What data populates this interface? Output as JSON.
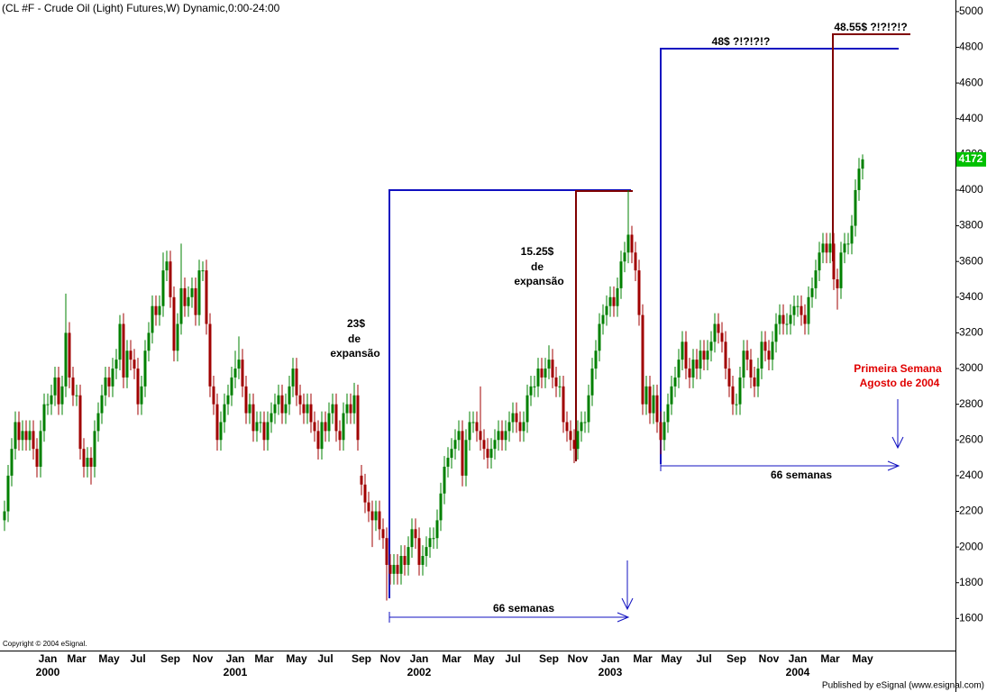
{
  "chart_data": {
    "type": "candlestick",
    "title": "(CL #F - Crude Oil (Light) Futures,W) Dynamic,0:00-24:00",
    "copyright": "Copyright © 2004 eSignal.",
    "publisher": "Published by eSignal (www.esignal.com)",
    "up_color": "#008000",
    "down_color": "#a00000",
    "last_color": "#00c000",
    "ylim": [
      1420,
      5065
    ],
    "yticks": [
      1600,
      1800,
      2000,
      2200,
      2400,
      2600,
      2800,
      3000,
      3200,
      3400,
      3600,
      3800,
      4000,
      4200,
      4400,
      4600,
      4800,
      5000
    ],
    "categories": [
      null,
      null,
      null,
      null,
      null,
      null,
      null,
      null,
      null,
      null,
      null,
      null,
      "Jan",
      null,
      null,
      null,
      null,
      null,
      null,
      null,
      "Mar",
      null,
      null,
      null,
      null,
      null,
      null,
      null,
      null,
      "May",
      null,
      null,
      null,
      null,
      null,
      null,
      null,
      "Jul",
      null,
      null,
      null,
      null,
      null,
      null,
      null,
      null,
      "Sep",
      null,
      null,
      null,
      null,
      null,
      null,
      null,
      null,
      "Nov",
      null,
      null,
      null,
      null,
      null,
      null,
      null,
      null,
      "Jan",
      null,
      null,
      null,
      null,
      null,
      null,
      null,
      "Mar",
      null,
      null,
      null,
      null,
      null,
      null,
      null,
      null,
      "May",
      null,
      null,
      null,
      null,
      null,
      null,
      null,
      "Jul",
      null,
      null,
      null,
      null,
      null,
      null,
      null,
      null,
      null,
      "Sep",
      null,
      null,
      null,
      null,
      null,
      null,
      null,
      "Nov",
      null,
      null,
      null,
      null,
      null,
      null,
      null,
      "Jan",
      null,
      null,
      null,
      null,
      null,
      null,
      null,
      null,
      "Mar",
      null,
      null,
      null,
      null,
      null,
      null,
      null,
      null,
      "May",
      null,
      null,
      null,
      null,
      null,
      null,
      null,
      "Jul",
      null,
      null,
      null,
      null,
      null,
      null,
      null,
      null,
      null,
      "Sep",
      null,
      null,
      null,
      null,
      null,
      null,
      null,
      "Nov",
      null,
      null,
      null,
      null,
      null,
      null,
      null,
      null,
      "Jan",
      null,
      null,
      null,
      null,
      null,
      null,
      null,
      null,
      "Mar",
      null,
      null,
      null,
      null,
      null,
      null,
      null,
      "May",
      null,
      null,
      null,
      null,
      null,
      null,
      null,
      null,
      "Jul",
      null,
      null,
      null,
      null,
      null,
      null,
      null,
      null,
      "Sep",
      null,
      null,
      null,
      null,
      null,
      null,
      null,
      null,
      "Nov",
      null,
      null,
      null,
      null,
      null,
      null,
      null,
      "Jan",
      null,
      null,
      null,
      null,
      null,
      null,
      null,
      null,
      "Mar",
      null,
      null,
      null,
      null,
      null,
      null,
      null,
      null,
      "May"
    ],
    "years": [
      null,
      null,
      null,
      null,
      null,
      null,
      null,
      null,
      null,
      null,
      null,
      null,
      "2000",
      null,
      null,
      null,
      null,
      null,
      null,
      null,
      null,
      null,
      null,
      null,
      null,
      null,
      null,
      null,
      null,
      null,
      null,
      null,
      null,
      null,
      null,
      null,
      null,
      null,
      null,
      null,
      null,
      null,
      null,
      null,
      null,
      null,
      null,
      null,
      null,
      null,
      null,
      null,
      null,
      null,
      null,
      null,
      null,
      null,
      null,
      null,
      null,
      null,
      null,
      null,
      "2001",
      null,
      null,
      null,
      null,
      null,
      null,
      null,
      null,
      null,
      null,
      null,
      null,
      null,
      null,
      null,
      null,
      null,
      null,
      null,
      null,
      null,
      null,
      null,
      null,
      null,
      null,
      null,
      null,
      null,
      null,
      null,
      null,
      null,
      null,
      null,
      null,
      null,
      null,
      null,
      null,
      null,
      null,
      null,
      null,
      null,
      null,
      null,
      null,
      null,
      null,
      "2002",
      null,
      null,
      null,
      null,
      null,
      null,
      null,
      null,
      null,
      null,
      null,
      null,
      null,
      null,
      null,
      null,
      null,
      null,
      null,
      null,
      null,
      null,
      null,
      null,
      null,
      null,
      null,
      null,
      null,
      null,
      null,
      null,
      null,
      null,
      null,
      null,
      null,
      null,
      null,
      null,
      null,
      null,
      null,
      null,
      null,
      null,
      null,
      null,
      null,
      null,
      null,
      null,
      "2003",
      null,
      null,
      null,
      null,
      null,
      null,
      null,
      null,
      null,
      null,
      null,
      null,
      null,
      null,
      null,
      null,
      null,
      null,
      null,
      null,
      null,
      null,
      null,
      null,
      null,
      null,
      null,
      null,
      null,
      null,
      null,
      null,
      null,
      null,
      null,
      null,
      null,
      null,
      null,
      null,
      null,
      null,
      null,
      null,
      null,
      null,
      null,
      null,
      null,
      null,
      null,
      "2004",
      null,
      null,
      null,
      null,
      null,
      null,
      null,
      null,
      null,
      null,
      null,
      null,
      null,
      null,
      null,
      null,
      null,
      null
    ],
    "open": [
      2150,
      2200,
      2400,
      2550,
      2700,
      2600,
      2650,
      2600,
      2650,
      2550,
      2450,
      2650,
      2800,
      2800,
      2850,
      2950,
      2800,
      2900,
      3200,
      2950,
      2850,
      2850,
      2550,
      2450,
      2500,
      2450,
      2650,
      2750,
      2850,
      2950,
      2900,
      3000,
      3050,
      3250,
      2950,
      3100,
      3050,
      3000,
      2800,
      2900,
      3100,
      3200,
      3350,
      3300,
      3350,
      3550,
      3600,
      3400,
      3100,
      3250,
      3450,
      3350,
      3400,
      3450,
      3300,
      3550,
      3550,
      3250,
      2900,
      2800,
      2600,
      2700,
      2800,
      2850,
      2950,
      3000,
      3050,
      2900,
      2750,
      2800,
      2650,
      2700,
      2700,
      2600,
      2700,
      2750,
      2800,
      2850,
      2750,
      2800,
      2900,
      3000,
      2850,
      2800,
      2750,
      2800,
      2700,
      2650,
      2550,
      2700,
      2650,
      2750,
      2800,
      2650,
      2600,
      2750,
      2800,
      2750,
      2850,
      2400,
      2350,
      2250,
      2200,
      2150,
      2200,
      2100,
      2050,
      1900,
      1850,
      1900,
      1850,
      1950,
      1900,
      2000,
      2100,
      2050,
      1900,
      1950,
      2000,
      2050,
      2050,
      2150,
      2300,
      2450,
      2500,
      2550,
      2600,
      2650,
      2400,
      2600,
      2700,
      2700,
      2650,
      2600,
      2550,
      2500,
      2550,
      2600,
      2650,
      2600,
      2650,
      2700,
      2750,
      2700,
      2650,
      2700,
      2850,
      2900,
      2900,
      3000,
      2950,
      3000,
      3050,
      2950,
      2900,
      2900,
      2700,
      2650,
      2600,
      2550,
      2650,
      2700,
      2700,
      2850,
      3000,
      3100,
      3250,
      3300,
      3350,
      3400,
      3350,
      3450,
      3600,
      3650,
      3750,
      3650,
      3550,
      3300,
      2800,
      2900,
      2750,
      2850,
      2700,
      2600,
      2700,
      2800,
      2900,
      2950,
      3050,
      3150,
      3000,
      2950,
      3050,
      3000,
      3100,
      3050,
      3100,
      3150,
      3250,
      3200,
      3150,
      3000,
      2900,
      2800,
      2800,
      2950,
      3100,
      3050,
      2950,
      2900,
      3000,
      3150,
      3100,
      3050,
      3150,
      3250,
      3300,
      3250,
      3250,
      3300,
      3350,
      3350,
      3300,
      3250,
      3400,
      3450,
      3550,
      3650,
      3700,
      3650,
      3700,
      3500,
      3450,
      3650,
      3700,
      3700,
      3800,
      4000,
      4120
    ],
    "high": [
      2260,
      2460,
      2610,
      2760,
      2760,
      2710,
      2710,
      2710,
      2710,
      2610,
      2710,
      2860,
      2860,
      2910,
      3010,
      3010,
      2960,
      3420,
      3260,
      3010,
      2910,
      2910,
      2610,
      2560,
      2560,
      2710,
      2810,
      2910,
      3010,
      3010,
      3060,
      3110,
      3300,
      3310,
      3160,
      3160,
      3110,
      3060,
      2960,
      3160,
      3260,
      3410,
      3410,
      3410,
      3650,
      3660,
      3660,
      3460,
      3310,
      3700,
      3510,
      3460,
      3510,
      3510,
      3610,
      3600,
      3610,
      3310,
      2960,
      2860,
      2760,
      2860,
      2910,
      3010,
      3100,
      3180,
      3110,
      2960,
      2860,
      2860,
      2760,
      2760,
      2760,
      2760,
      2810,
      2860,
      2910,
      2910,
      2860,
      2960,
      3060,
      3060,
      2910,
      2860,
      2860,
      2860,
      2760,
      2710,
      2760,
      2760,
      2810,
      2860,
      2860,
      2710,
      2810,
      2860,
      2860,
      2920,
      2910,
      2460,
      2410,
      2310,
      2260,
      2260,
      2260,
      2160,
      2110,
      1960,
      1960,
      1960,
      2010,
      2010,
      2060,
      2160,
      2160,
      2110,
      2010,
      2060,
      2110,
      2110,
      2210,
      2360,
      2510,
      2560,
      2610,
      2660,
      2710,
      2710,
      2660,
      2760,
      2760,
      2760,
      2900,
      2660,
      2610,
      2610,
      2660,
      2710,
      2710,
      2710,
      2760,
      2810,
      2810,
      2760,
      2760,
      2910,
      2960,
      2960,
      3060,
      3060,
      3060,
      3130,
      3110,
      3010,
      2960,
      2960,
      2760,
      2710,
      2660,
      2710,
      2760,
      2760,
      2910,
      3060,
      3160,
      3310,
      3360,
      3410,
      3460,
      3460,
      3510,
      3660,
      3710,
      4000,
      3800,
      3710,
      3610,
      3360,
      2960,
      2960,
      2910,
      2910,
      2760,
      2760,
      2860,
      2960,
      3010,
      3110,
      3210,
      3210,
      3060,
      3110,
      3110,
      3160,
      3160,
      3160,
      3210,
      3310,
      3310,
      3260,
      3210,
      3060,
      2960,
      2860,
      3010,
      3160,
      3160,
      3110,
      3010,
      3060,
      3210,
      3210,
      3160,
      3210,
      3310,
      3360,
      3360,
      3310,
      3360,
      3410,
      3410,
      3410,
      3360,
      3460,
      3510,
      3610,
      3710,
      3760,
      3760,
      3760,
      3760,
      3560,
      3710,
      3760,
      3760,
      3860,
      4060,
      4180,
      4200
    ],
    "low": [
      2090,
      2140,
      2340,
      2490,
      2540,
      2540,
      2540,
      2540,
      2490,
      2390,
      2390,
      2590,
      2740,
      2740,
      2790,
      2740,
      2740,
      2840,
      2890,
      2790,
      2790,
      2490,
      2390,
      2390,
      2350,
      2390,
      2590,
      2690,
      2790,
      2840,
      2840,
      2940,
      2990,
      2890,
      2890,
      2990,
      2940,
      2740,
      2740,
      2840,
      3040,
      3140,
      3240,
      3240,
      3290,
      3490,
      3340,
      3040,
      3040,
      3190,
      3290,
      3290,
      3340,
      3240,
      3240,
      3490,
      3190,
      2840,
      2740,
      2540,
      2540,
      2640,
      2740,
      2790,
      2890,
      2940,
      2840,
      2690,
      2690,
      2590,
      2590,
      2640,
      2540,
      2540,
      2640,
      2690,
      2740,
      2690,
      2690,
      2740,
      2840,
      2790,
      2740,
      2690,
      2690,
      2640,
      2590,
      2490,
      2490,
      2590,
      2590,
      2690,
      2590,
      2540,
      2540,
      2690,
      2690,
      2690,
      2540,
      2290,
      2190,
      2140,
      2000,
      2090,
      2040,
      1990,
      1700,
      1790,
      1790,
      1790,
      1790,
      1840,
      1840,
      1940,
      1990,
      1840,
      1840,
      1890,
      1940,
      1990,
      1990,
      2090,
      2240,
      2390,
      2440,
      2490,
      2540,
      2340,
      2340,
      2540,
      2640,
      2590,
      2540,
      2490,
      2440,
      2440,
      2490,
      2540,
      2540,
      2540,
      2590,
      2640,
      2640,
      2590,
      2590,
      2640,
      2790,
      2840,
      2840,
      2890,
      2890,
      2940,
      2890,
      2840,
      2840,
      2640,
      2590,
      2540,
      2470,
      2490,
      2590,
      2640,
      2640,
      2790,
      2940,
      3040,
      3190,
      3240,
      3290,
      3290,
      3290,
      3390,
      3540,
      3590,
      3590,
      3490,
      3240,
      2740,
      2740,
      2690,
      2690,
      2640,
      2520,
      2540,
      2640,
      2740,
      2840,
      2890,
      2990,
      2940,
      2890,
      2890,
      2940,
      2940,
      2990,
      2990,
      3040,
      3090,
      3140,
      3090,
      2940,
      2840,
      2740,
      2740,
      2740,
      2890,
      2990,
      2890,
      2840,
      2840,
      2940,
      3040,
      2990,
      2990,
      3090,
      3190,
      3190,
      3190,
      3190,
      3240,
      3290,
      3240,
      3190,
      3190,
      3340,
      3390,
      3490,
      3590,
      3590,
      3590,
      3440,
      3330,
      3390,
      3590,
      3640,
      3640,
      3740,
      3940,
      4060
    ],
    "close": [
      2200,
      2400,
      2550,
      2700,
      2600,
      2650,
      2600,
      2650,
      2550,
      2450,
      2650,
      2800,
      2800,
      2850,
      2950,
      2800,
      2900,
      3200,
      2950,
      2850,
      2850,
      2550,
      2450,
      2500,
      2450,
      2650,
      2750,
      2850,
      2950,
      2900,
      3000,
      3050,
      3250,
      2950,
      3100,
      3050,
      3000,
      2800,
      2900,
      3100,
      3200,
      3350,
      3300,
      3350,
      3550,
      3600,
      3400,
      3100,
      3250,
      3450,
      3350,
      3400,
      3450,
      3300,
      3550,
      3550,
      3250,
      2900,
      2800,
      2600,
      2700,
      2800,
      2850,
      2950,
      3000,
      3050,
      2900,
      2750,
      2800,
      2650,
      2700,
      2700,
      2600,
      2700,
      2750,
      2800,
      2850,
      2750,
      2800,
      2900,
      3000,
      2850,
      2800,
      2750,
      2800,
      2700,
      2650,
      2550,
      2700,
      2650,
      2750,
      2800,
      2650,
      2600,
      2750,
      2800,
      2750,
      2850,
      2600,
      2350,
      2250,
      2200,
      2150,
      2200,
      2100,
      2050,
      1900,
      1850,
      1900,
      1850,
      1950,
      1900,
      2000,
      2100,
      2050,
      1900,
      1950,
      2000,
      2050,
      2050,
      2150,
      2300,
      2450,
      2500,
      2550,
      2600,
      2650,
      2400,
      2600,
      2700,
      2700,
      2650,
      2600,
      2550,
      2500,
      2550,
      2600,
      2650,
      2600,
      2650,
      2700,
      2750,
      2700,
      2650,
      2700,
      2850,
      2900,
      2900,
      3000,
      2950,
      3000,
      3050,
      2950,
      2900,
      2900,
      2700,
      2650,
      2600,
      2550,
      2650,
      2700,
      2700,
      2850,
      3000,
      3100,
      3250,
      3300,
      3350,
      3400,
      3350,
      3450,
      3600,
      3650,
      3750,
      3650,
      3550,
      3300,
      2800,
      2900,
      2750,
      2850,
      2700,
      2600,
      2700,
      2800,
      2900,
      2950,
      3050,
      3150,
      3000,
      2950,
      3050,
      3000,
      3100,
      3050,
      3100,
      3150,
      3250,
      3200,
      3150,
      3000,
      2900,
      2800,
      2800,
      2950,
      3100,
      3050,
      2950,
      2900,
      3000,
      3150,
      3100,
      3050,
      3150,
      3250,
      3300,
      3250,
      3250,
      3300,
      3350,
      3350,
      3300,
      3250,
      3400,
      3450,
      3550,
      3650,
      3700,
      3650,
      3700,
      3500,
      3450,
      3650,
      3700,
      3700,
      3800,
      4000,
      4120,
      4172
    ],
    "annotations": [
      {
        "text": [
          "23$",
          "de",
          "expansão"
        ]
      },
      {
        "text": [
          "15.25$",
          "de",
          "expansão"
        ]
      },
      {
        "text": [
          "48$ ?!?!?!?"
        ]
      },
      {
        "text": [
          "48.55$ ?!?!?!?"
        ]
      },
      {
        "text": [
          "Primeira Semana",
          "Agosto de 2004"
        ]
      },
      {
        "text": [
          "66 semanas"
        ]
      },
      {
        "text": [
          "66 semanas"
        ]
      }
    ]
  }
}
